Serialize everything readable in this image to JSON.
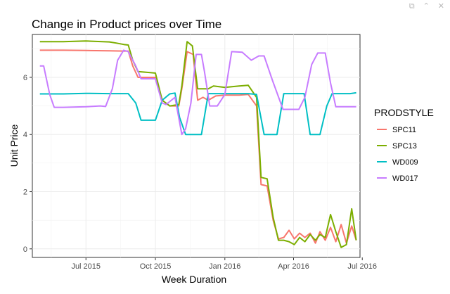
{
  "toolbar": {
    "icons": [
      "expand-icon",
      "collapse-icon",
      "close-icon"
    ]
  },
  "chart_data": {
    "type": "line",
    "title": "Change in Product prices over Time",
    "xlabel": "Week Duration",
    "ylabel": "Unit Price",
    "ylim": [
      -0.3,
      7.5
    ],
    "xlim": [
      "2015-04-21",
      "2016-06-28"
    ],
    "x_ticks": [
      {
        "date": "2015-07-01",
        "label": "Jul 2015"
      },
      {
        "date": "2015-10-01",
        "label": "Oct 2015"
      },
      {
        "date": "2016-01-01",
        "label": "Jan 2016"
      },
      {
        "date": "2016-04-01",
        "label": "Apr 2016"
      },
      {
        "date": "2016-07-01",
        "label": "Jul 2016"
      }
    ],
    "y_ticks": [
      0,
      2,
      4,
      6
    ],
    "grid": true,
    "legend": {
      "title": "PRODSTYLE",
      "placement": "right"
    },
    "series": [
      {
        "name": "SPC11",
        "color": "#F8766D",
        "points": [
          [
            "2015-05-01",
            6.95
          ],
          [
            "2015-06-01",
            6.95
          ],
          [
            "2015-07-01",
            6.94
          ],
          [
            "2015-08-01",
            6.93
          ],
          [
            "2015-08-20",
            6.92
          ],
          [
            "2015-08-26",
            6.92
          ],
          [
            "2015-09-01",
            6.4
          ],
          [
            "2015-09-08",
            6.0
          ],
          [
            "2015-10-01",
            6.0
          ],
          [
            "2015-10-10",
            5.2
          ],
          [
            "2015-10-20",
            5.0
          ],
          [
            "2015-11-01",
            5.0
          ],
          [
            "2015-11-05",
            5.6
          ],
          [
            "2015-11-12",
            6.9
          ],
          [
            "2015-11-20",
            6.8
          ],
          [
            "2015-11-26",
            5.2
          ],
          [
            "2015-12-03",
            5.3
          ],
          [
            "2015-12-10",
            5.2
          ],
          [
            "2015-12-20",
            5.35
          ],
          [
            "2016-01-01",
            5.38
          ],
          [
            "2016-01-20",
            5.38
          ],
          [
            "2016-02-01",
            5.4
          ],
          [
            "2016-02-12",
            5.0
          ],
          [
            "2016-02-18",
            2.25
          ],
          [
            "2016-02-26",
            2.2
          ],
          [
            "2016-03-05",
            1.0
          ],
          [
            "2016-03-12",
            0.35
          ],
          [
            "2016-03-19",
            0.4
          ],
          [
            "2016-03-26",
            0.65
          ],
          [
            "2016-04-02",
            0.35
          ],
          [
            "2016-04-09",
            0.55
          ],
          [
            "2016-04-16",
            0.4
          ],
          [
            "2016-04-23",
            0.55
          ],
          [
            "2016-04-30",
            0.2
          ],
          [
            "2016-05-06",
            0.6
          ],
          [
            "2016-05-13",
            0.3
          ],
          [
            "2016-05-20",
            0.75
          ],
          [
            "2016-05-27",
            0.25
          ],
          [
            "2016-06-03",
            0.85
          ],
          [
            "2016-06-10",
            0.2
          ],
          [
            "2016-06-17",
            0.8
          ],
          [
            "2016-06-23",
            0.3
          ]
        ]
      },
      {
        "name": "SPC13",
        "color": "#7CAE00",
        "points": [
          [
            "2015-05-01",
            7.25
          ],
          [
            "2015-06-01",
            7.25
          ],
          [
            "2015-07-01",
            7.27
          ],
          [
            "2015-08-01",
            7.24
          ],
          [
            "2015-08-10",
            7.2
          ],
          [
            "2015-08-20",
            7.15
          ],
          [
            "2015-08-26",
            7.13
          ],
          [
            "2015-09-01",
            6.6
          ],
          [
            "2015-09-08",
            6.2
          ],
          [
            "2015-10-01",
            6.15
          ],
          [
            "2015-10-10",
            5.2
          ],
          [
            "2015-10-20",
            5.0
          ],
          [
            "2015-11-01",
            5.05
          ],
          [
            "2015-11-05",
            5.7
          ],
          [
            "2015-11-12",
            7.25
          ],
          [
            "2015-11-19",
            7.1
          ],
          [
            "2015-11-26",
            5.6
          ],
          [
            "2015-12-03",
            5.6
          ],
          [
            "2015-12-10",
            5.6
          ],
          [
            "2015-12-17",
            5.7
          ],
          [
            "2016-01-01",
            5.65
          ],
          [
            "2016-01-20",
            5.7
          ],
          [
            "2016-02-01",
            5.72
          ],
          [
            "2016-02-12",
            5.3
          ],
          [
            "2016-02-18",
            2.5
          ],
          [
            "2016-02-26",
            2.45
          ],
          [
            "2016-03-05",
            1.1
          ],
          [
            "2016-03-12",
            0.3
          ],
          [
            "2016-03-19",
            0.3
          ],
          [
            "2016-03-26",
            0.25
          ],
          [
            "2016-04-02",
            0.15
          ],
          [
            "2016-04-09",
            0.4
          ],
          [
            "2016-04-16",
            0.25
          ],
          [
            "2016-04-23",
            0.5
          ],
          [
            "2016-04-30",
            0.3
          ],
          [
            "2016-05-06",
            0.5
          ],
          [
            "2016-05-13",
            0.4
          ],
          [
            "2016-05-20",
            1.2
          ],
          [
            "2016-05-27",
            0.6
          ],
          [
            "2016-06-03",
            0.05
          ],
          [
            "2016-06-10",
            0.15
          ],
          [
            "2016-06-17",
            1.4
          ],
          [
            "2016-06-23",
            0.3
          ]
        ]
      },
      {
        "name": "WD009",
        "color": "#00BFC4",
        "points": [
          [
            "2015-05-01",
            5.42
          ],
          [
            "2015-06-01",
            5.42
          ],
          [
            "2015-07-01",
            5.44
          ],
          [
            "2015-08-01",
            5.43
          ],
          [
            "2015-08-26",
            5.43
          ],
          [
            "2015-09-05",
            5.1
          ],
          [
            "2015-09-12",
            4.5
          ],
          [
            "2015-10-01",
            4.5
          ],
          [
            "2015-10-10",
            5.2
          ],
          [
            "2015-10-20",
            5.42
          ],
          [
            "2015-10-27",
            5.45
          ],
          [
            "2015-11-02",
            4.6
          ],
          [
            "2015-11-10",
            4.0
          ],
          [
            "2015-12-01",
            4.0
          ],
          [
            "2015-12-10",
            5.43
          ],
          [
            "2016-01-01",
            5.43
          ],
          [
            "2016-02-01",
            5.43
          ],
          [
            "2016-02-12",
            5.4
          ],
          [
            "2016-02-22",
            4.0
          ],
          [
            "2016-03-10",
            4.0
          ],
          [
            "2016-03-19",
            5.43
          ],
          [
            "2016-04-15",
            5.43
          ],
          [
            "2016-04-23",
            4.0
          ],
          [
            "2016-05-06",
            4.0
          ],
          [
            "2016-05-15",
            5.0
          ],
          [
            "2016-05-22",
            5.43
          ],
          [
            "2016-06-15",
            5.43
          ],
          [
            "2016-06-23",
            5.46
          ]
        ]
      },
      {
        "name": "WD017",
        "color": "#C77CFF",
        "points": [
          [
            "2015-05-01",
            6.4
          ],
          [
            "2015-05-06",
            6.4
          ],
          [
            "2015-05-14",
            5.4
          ],
          [
            "2015-05-20",
            4.95
          ],
          [
            "2015-06-01",
            4.95
          ],
          [
            "2015-07-01",
            4.97
          ],
          [
            "2015-07-20",
            5.0
          ],
          [
            "2015-07-27",
            4.98
          ],
          [
            "2015-08-05",
            5.6
          ],
          [
            "2015-08-12",
            6.6
          ],
          [
            "2015-08-20",
            6.95
          ],
          [
            "2015-08-26",
            6.9
          ],
          [
            "2015-09-05",
            6.4
          ],
          [
            "2015-09-12",
            5.95
          ],
          [
            "2015-10-01",
            5.95
          ],
          [
            "2015-10-10",
            5.1
          ],
          [
            "2015-10-15",
            5.05
          ],
          [
            "2015-10-27",
            5.3
          ],
          [
            "2015-11-05",
            4.0
          ],
          [
            "2015-11-10",
            4.2
          ],
          [
            "2015-11-17",
            5.1
          ],
          [
            "2015-11-24",
            6.8
          ],
          [
            "2015-12-01",
            6.8
          ],
          [
            "2015-12-05",
            6.2
          ],
          [
            "2015-12-12",
            5.0
          ],
          [
            "2015-12-22",
            5.0
          ],
          [
            "2016-01-01",
            5.4
          ],
          [
            "2016-01-10",
            6.9
          ],
          [
            "2016-01-24",
            6.88
          ],
          [
            "2016-02-05",
            6.6
          ],
          [
            "2016-02-15",
            6.75
          ],
          [
            "2016-02-22",
            6.75
          ],
          [
            "2016-03-04",
            5.9
          ],
          [
            "2016-03-18",
            4.88
          ],
          [
            "2016-04-08",
            4.88
          ],
          [
            "2016-04-16",
            5.3
          ],
          [
            "2016-04-25",
            6.45
          ],
          [
            "2016-05-03",
            6.85
          ],
          [
            "2016-05-13",
            6.85
          ],
          [
            "2016-05-20",
            5.8
          ],
          [
            "2016-05-27",
            4.97
          ],
          [
            "2016-06-15",
            4.97
          ],
          [
            "2016-06-23",
            4.97
          ]
        ]
      }
    ]
  }
}
